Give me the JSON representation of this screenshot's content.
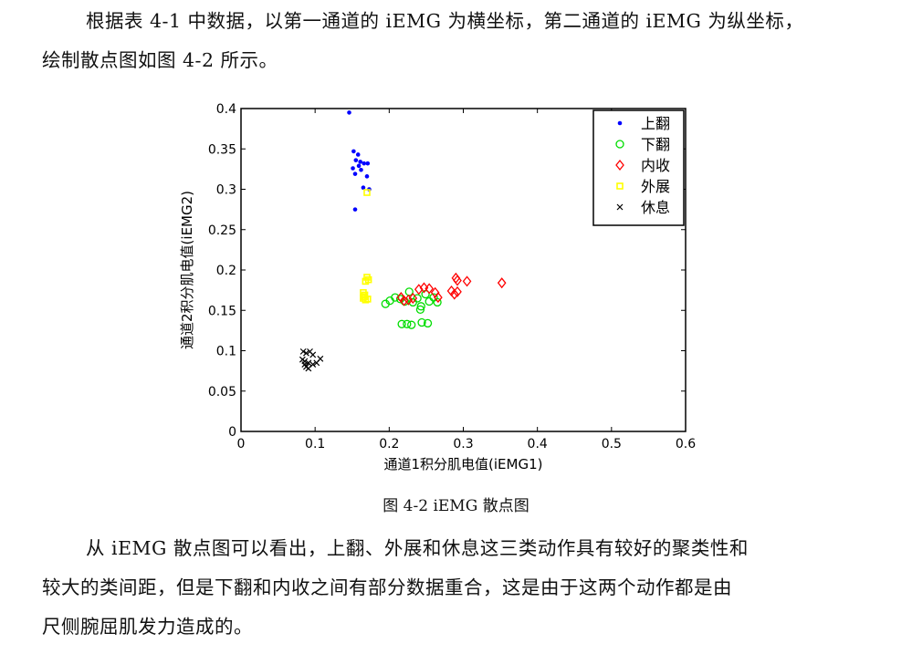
{
  "paragraph1": {
    "line1": "根据表 4-1 中数据，以第一通道的 iEMG 为横坐标，第二通道的 iEMG 为纵坐标，",
    "line2": "绘制散点图如图 4-2 所示。"
  },
  "figure_caption": "图 4-2 iEMG 散点图",
  "paragraph2": {
    "line1": "从 iEMG 散点图可以看出，上翻、外展和休息这三类动作具有较好的聚类性和",
    "line2": "较大的类间距，但是下翻和内收之间有部分数据重合，这是由于这两个动作都是由",
    "line3": "尺侧腕屈肌发力造成的。"
  },
  "chart_data": {
    "type": "scatter",
    "xlabel": "通道1积分肌电值(iEMG1)",
    "ylabel": "通道2积分肌电值(iEMG2)",
    "xlim": [
      0,
      0.6
    ],
    "ylim": [
      0,
      0.4
    ],
    "xticks": [
      "0",
      "0.1",
      "0.2",
      "0.3",
      "0.4",
      "0.5",
      "0.6"
    ],
    "yticks": [
      "0",
      "0.05",
      "0.1",
      "0.15",
      "0.2",
      "0.25",
      "0.3",
      "0.35",
      "0.4"
    ],
    "legend_position": "top-right",
    "series": [
      {
        "name": "上翻",
        "marker": "dot",
        "color": "#0000ff",
        "points": [
          [
            0.146,
            0.395
          ],
          [
            0.152,
            0.347
          ],
          [
            0.158,
            0.343
          ],
          [
            0.155,
            0.336
          ],
          [
            0.161,
            0.334
          ],
          [
            0.166,
            0.332
          ],
          [
            0.171,
            0.332
          ],
          [
            0.159,
            0.329
          ],
          [
            0.151,
            0.326
          ],
          [
            0.162,
            0.324
          ],
          [
            0.154,
            0.319
          ],
          [
            0.17,
            0.316
          ],
          [
            0.165,
            0.302
          ],
          [
            0.173,
            0.3
          ],
          [
            0.154,
            0.275
          ]
        ]
      },
      {
        "name": "下翻",
        "marker": "circle",
        "color": "#00dd00",
        "points": [
          [
            0.195,
            0.158
          ],
          [
            0.201,
            0.162
          ],
          [
            0.208,
            0.166
          ],
          [
            0.215,
            0.164
          ],
          [
            0.221,
            0.161
          ],
          [
            0.227,
            0.173
          ],
          [
            0.232,
            0.16
          ],
          [
            0.238,
            0.165
          ],
          [
            0.243,
            0.155
          ],
          [
            0.249,
            0.17
          ],
          [
            0.254,
            0.161
          ],
          [
            0.26,
            0.166
          ],
          [
            0.265,
            0.16
          ],
          [
            0.217,
            0.133
          ],
          [
            0.224,
            0.133
          ],
          [
            0.23,
            0.132
          ],
          [
            0.244,
            0.135
          ],
          [
            0.252,
            0.134
          ],
          [
            0.242,
            0.151
          ]
        ]
      },
      {
        "name": "内收",
        "marker": "diamond",
        "color": "#ff0000",
        "points": [
          [
            0.216,
            0.166
          ],
          [
            0.22,
            0.162
          ],
          [
            0.226,
            0.163
          ],
          [
            0.232,
            0.165
          ],
          [
            0.24,
            0.176
          ],
          [
            0.247,
            0.178
          ],
          [
            0.254,
            0.177
          ],
          [
            0.262,
            0.172
          ],
          [
            0.266,
            0.166
          ],
          [
            0.284,
            0.174
          ],
          [
            0.288,
            0.17
          ],
          [
            0.292,
            0.173
          ],
          [
            0.29,
            0.19
          ],
          [
            0.292,
            0.187
          ],
          [
            0.305,
            0.186
          ],
          [
            0.352,
            0.184
          ]
        ]
      },
      {
        "name": "外展",
        "marker": "square",
        "color": "#ffff00",
        "points": [
          [
            0.17,
            0.296
          ],
          [
            0.168,
            0.186
          ],
          [
            0.17,
            0.191
          ],
          [
            0.172,
            0.188
          ],
          [
            0.165,
            0.172
          ],
          [
            0.167,
            0.169
          ],
          [
            0.165,
            0.165
          ],
          [
            0.168,
            0.163
          ],
          [
            0.166,
            0.167
          ],
          [
            0.171,
            0.164
          ]
        ]
      },
      {
        "name": "休息",
        "marker": "x",
        "color": "#000000",
        "points": [
          [
            0.084,
            0.099
          ],
          [
            0.088,
            0.097
          ],
          [
            0.093,
            0.099
          ],
          [
            0.097,
            0.095
          ],
          [
            0.083,
            0.089
          ],
          [
            0.086,
            0.087
          ],
          [
            0.091,
            0.085
          ],
          [
            0.086,
            0.083
          ],
          [
            0.088,
            0.08
          ],
          [
            0.097,
            0.083
          ],
          [
            0.102,
            0.085
          ],
          [
            0.107,
            0.09
          ],
          [
            0.091,
            0.078
          ]
        ]
      }
    ]
  }
}
